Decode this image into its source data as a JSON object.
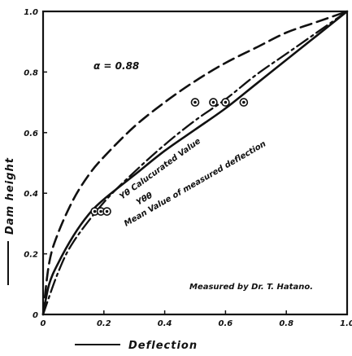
{
  "chart_data": {
    "type": "line",
    "xlabel": "Deflection",
    "ylabel": "Dam height",
    "xlim": [
      0,
      1.0
    ],
    "ylim": [
      0,
      1.0
    ],
    "x_ticks": [
      "0",
      "0.2",
      "0.4",
      "0.6",
      "0.8",
      "1.0"
    ],
    "y_ticks": [
      "0",
      "0.2",
      "0.4",
      "0.6",
      "0.8",
      "1.0"
    ],
    "grid": false,
    "annotations": {
      "alpha": "α = 0.88",
      "credit": "Measured by Dr. T. Hatano.",
      "curve_label_1": "Yθ Calucurated Value",
      "curve_label_2": "Yθθ",
      "curve_label_3": "Mean Value of measured deflection"
    },
    "series": [
      {
        "label": "Yθ Calucurated Value",
        "style": "dashed",
        "x": [
          0,
          0.02,
          0.05,
          0.1,
          0.15,
          0.2,
          0.3,
          0.4,
          0.5,
          0.6,
          0.7,
          0.8,
          0.9,
          1.0
        ],
        "y": [
          0,
          0.17,
          0.27,
          0.38,
          0.46,
          0.52,
          0.62,
          0.7,
          0.77,
          0.83,
          0.88,
          0.93,
          0.965,
          1.0
        ]
      },
      {
        "label": "Yθθ",
        "style": "dashdot",
        "x": [
          0,
          0.05,
          0.1,
          0.2,
          0.3,
          0.4,
          0.5,
          0.6,
          0.7,
          0.8,
          0.9,
          1.0
        ],
        "y": [
          0,
          0.14,
          0.24,
          0.37,
          0.47,
          0.56,
          0.64,
          0.71,
          0.79,
          0.86,
          0.93,
          1.0
        ]
      },
      {
        "label": "Mean Value of measured deflection",
        "style": "solid",
        "x": [
          0,
          0.02,
          0.05,
          0.1,
          0.15,
          0.2,
          0.3,
          0.4,
          0.5,
          0.6,
          0.7,
          0.8,
          0.9,
          1.0
        ],
        "y": [
          0,
          0.1,
          0.17,
          0.26,
          0.33,
          0.38,
          0.46,
          0.54,
          0.61,
          0.68,
          0.76,
          0.84,
          0.92,
          1.0
        ]
      }
    ],
    "measured_points": [
      {
        "x": 0.17,
        "y": 0.34
      },
      {
        "x": 0.19,
        "y": 0.34
      },
      {
        "x": 0.21,
        "y": 0.34
      },
      {
        "x": 0.5,
        "y": 0.7
      },
      {
        "x": 0.56,
        "y": 0.7
      },
      {
        "x": 0.6,
        "y": 0.7
      },
      {
        "x": 0.66,
        "y": 0.7
      }
    ]
  }
}
